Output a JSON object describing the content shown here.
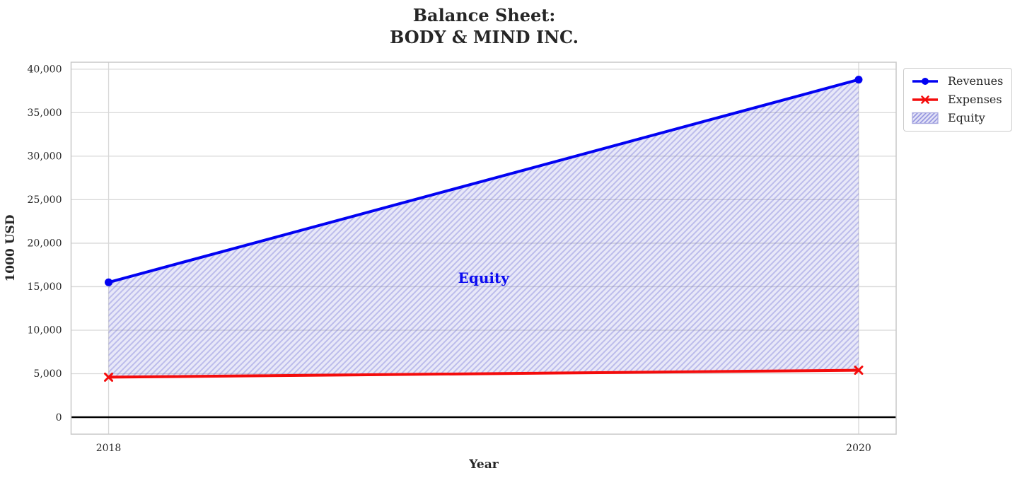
{
  "title": "Balance Sheet:\nBODY & MIND INC.",
  "axes": {
    "xlabel": "Year",
    "ylabel": "1000 USD"
  },
  "legend": {
    "items": [
      {
        "label": "Revenues",
        "swatch": "line-circle",
        "color": "#0202f2"
      },
      {
        "label": "Expenses",
        "swatch": "line-x",
        "color": "#f40c0c"
      },
      {
        "label": "Equity",
        "swatch": "hatch-patch",
        "color": "#4646c8"
      }
    ]
  },
  "chart_data": {
    "type": "line",
    "title": "Balance Sheet: BODY & MIND INC.",
    "xlabel": "Year",
    "ylabel": "1000 USD",
    "x": [
      2018,
      2020
    ],
    "series": [
      {
        "name": "Revenues",
        "values": [
          15500,
          38800
        ],
        "color": "#0202f2",
        "marker": "circle",
        "linewidth": 4
      },
      {
        "name": "Expenses",
        "values": [
          4600,
          5400
        ],
        "color": "#f40c0c",
        "marker": "x",
        "linewidth": 4
      }
    ],
    "fill_between": {
      "label": "Equity",
      "upper": "Revenues",
      "lower": "Expenses",
      "hatch": "/",
      "base_color": "#4646c8",
      "bg_alpha": 0.12,
      "hatch_alpha": 0.27
    },
    "annotation": {
      "text": "Equity",
      "x": 2019,
      "y": 16000,
      "color": "#0a0af0"
    },
    "xlim": [
      2017.9,
      2020.1
    ],
    "ylim": [
      -1950,
      40800
    ],
    "xticks": [
      2018,
      2020
    ],
    "xtick_labels": [
      "2018",
      "2020"
    ],
    "yticks": [
      0,
      5000,
      10000,
      15000,
      20000,
      25000,
      30000,
      35000,
      40000
    ],
    "ytick_labels": [
      "0",
      "5,000",
      "10,000",
      "15,000",
      "20,000",
      "25,000",
      "30,000",
      "35,000",
      "40,000"
    ],
    "grid": true,
    "zero_line": true,
    "legend_position": "upper right, outside axes",
    "colors": {
      "grid": "#d8d8d8",
      "spine": "#c8c8c8",
      "text": "#262626",
      "zero_line": "#000000"
    }
  }
}
